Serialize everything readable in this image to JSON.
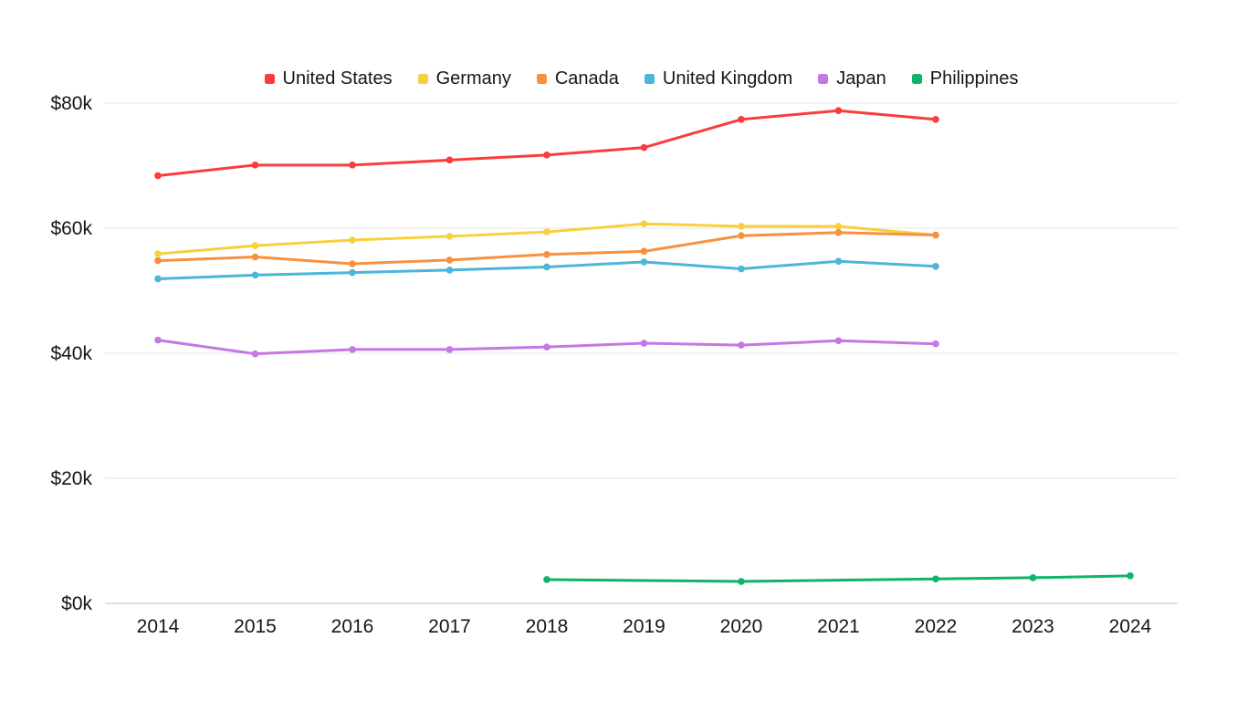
{
  "chart_data": {
    "type": "line",
    "title": "",
    "xlabel": "",
    "ylabel": "",
    "x_ticks": [
      2014,
      2015,
      2016,
      2017,
      2018,
      2019,
      2020,
      2021,
      2022,
      2023,
      2024
    ],
    "y_ticks": [
      0,
      20000,
      40000,
      60000,
      80000
    ],
    "y_tick_labels": [
      "$0k",
      "$20k",
      "$40k",
      "$60k",
      "$80k"
    ],
    "ylim": [
      0,
      80000
    ],
    "grid": true,
    "legend_position": "top",
    "grid_color": "#e6e6e6",
    "axis_color": "#c2c2c2",
    "text_color": "#16161a",
    "series": [
      {
        "name": "United States",
        "color": "#f93c3c",
        "x": [
          2014,
          2015,
          2016,
          2017,
          2018,
          2019,
          2020,
          2021,
          2022
        ],
        "values": [
          68400,
          70100,
          70100,
          70900,
          71700,
          72900,
          77400,
          78800,
          77400
        ]
      },
      {
        "name": "Germany",
        "color": "#f8d03e",
        "x": [
          2014,
          2015,
          2016,
          2017,
          2018,
          2019,
          2020,
          2021,
          2022
        ],
        "values": [
          55900,
          57200,
          58100,
          58700,
          59400,
          60700,
          60300,
          60300,
          58900
        ]
      },
      {
        "name": "Canada",
        "color": "#f7913f",
        "x": [
          2014,
          2015,
          2016,
          2017,
          2018,
          2019,
          2020,
          2021,
          2022
        ],
        "values": [
          54800,
          55400,
          54300,
          54900,
          55800,
          56300,
          58800,
          59300,
          58900
        ]
      },
      {
        "name": "United Kingdom",
        "color": "#4cb5d9",
        "x": [
          2014,
          2015,
          2016,
          2017,
          2018,
          2019,
          2020,
          2021,
          2022
        ],
        "values": [
          51900,
          52500,
          52900,
          53300,
          53800,
          54600,
          53500,
          54700,
          53900
        ]
      },
      {
        "name": "Japan",
        "color": "#c477e5",
        "x": [
          2014,
          2015,
          2016,
          2017,
          2018,
          2019,
          2020,
          2021,
          2022
        ],
        "values": [
          42100,
          39900,
          40600,
          40600,
          41000,
          41600,
          41300,
          42000,
          41500
        ]
      },
      {
        "name": "Philippines",
        "color": "#0db56a",
        "x": [
          2018,
          2020,
          2022,
          2023,
          2024
        ],
        "values": [
          3800,
          3500,
          3900,
          4100,
          4400
        ]
      }
    ]
  }
}
